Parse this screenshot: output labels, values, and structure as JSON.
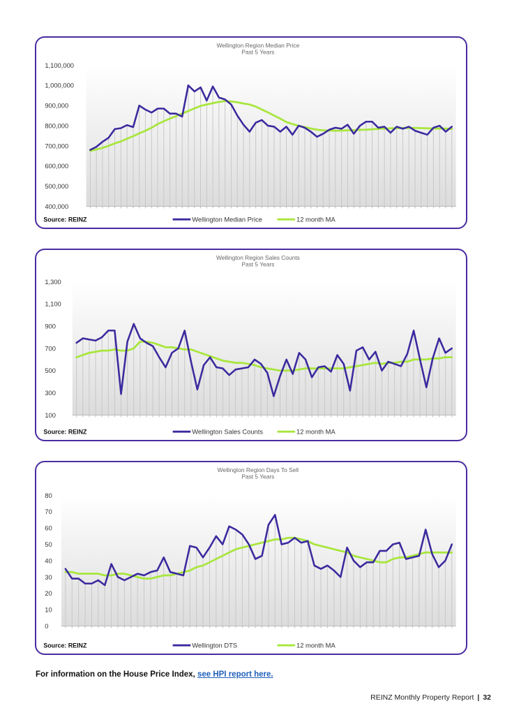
{
  "colors": {
    "series": "#3a2a9e",
    "ma": "#a8e63c",
    "border": "#4a2ca0",
    "link": "#1f5fb8"
  },
  "chart_data": [
    {
      "type": "line",
      "title": "Wellington Region  Median Price",
      "subtitle": "Past 5 Years",
      "source": "Source: REINZ",
      "ylim": [
        400000,
        1100000
      ],
      "yticks": [
        "400,000",
        "500,000",
        "600,000",
        "700,000",
        "800,000",
        "900,000",
        "1,000,000",
        "1,100,000"
      ],
      "legend_position": "bottom",
      "series": [
        {
          "name": "Wellington Median Price",
          "values": [
            680000,
            695000,
            720000,
            740000,
            783000,
            788000,
            803000,
            793000,
            900000,
            880000,
            865000,
            885000,
            885000,
            860000,
            860000,
            845000,
            1000000,
            970000,
            990000,
            925000,
            995000,
            940000,
            930000,
            905000,
            850000,
            805000,
            770000,
            815000,
            828000,
            800000,
            795000,
            770000,
            795000,
            755000,
            800000,
            790000,
            770000,
            745000,
            760000,
            780000,
            790000,
            785000,
            805000,
            760000,
            800000,
            820000,
            820000,
            790000,
            795000,
            765000,
            795000,
            785000,
            795000,
            775000,
            765000,
            755000,
            790000,
            800000,
            770000,
            795000
          ]
        },
        {
          "name": "12 month MA",
          "values": [
            675000,
            682000,
            690000,
            700000,
            712000,
            722000,
            735000,
            748000,
            762000,
            775000,
            790000,
            808000,
            822000,
            835000,
            847000,
            860000,
            873000,
            886000,
            898000,
            905000,
            912000,
            918000,
            922000,
            920000,
            916000,
            910000,
            905000,
            895000,
            880000,
            866000,
            850000,
            835000,
            818000,
            808000,
            800000,
            793000,
            786000,
            780000,
            777000,
            776000,
            775000,
            776000,
            777000,
            778000,
            779000,
            780000,
            782000,
            784000,
            786000,
            787000,
            788000,
            789000,
            789000,
            789000,
            788000,
            787000,
            786000,
            786000,
            786000,
            784000
          ]
        }
      ]
    },
    {
      "type": "line",
      "title": "Wellington Region  Sales Counts",
      "subtitle": "Past 5 Years",
      "source": "Source: REINZ",
      "ylim": [
        100,
        1300
      ],
      "yticks": [
        "100",
        "300",
        "500",
        "700",
        "900",
        "1,100",
        "1,300"
      ],
      "legend_position": "bottom",
      "series": [
        {
          "name": "Wellington Sales Counts",
          "values": [
            750,
            790,
            780,
            770,
            800,
            860,
            860,
            290,
            760,
            920,
            790,
            750,
            720,
            620,
            530,
            660,
            700,
            860,
            580,
            330,
            550,
            620,
            530,
            520,
            460,
            510,
            520,
            530,
            600,
            560,
            480,
            270,
            450,
            600,
            470,
            660,
            600,
            440,
            530,
            540,
            490,
            640,
            560,
            320,
            680,
            710,
            600,
            670,
            500,
            580,
            560,
            540,
            650,
            860,
            600,
            350,
            610,
            790,
            660,
            700
          ]
        },
        {
          "name": "12 month MA",
          "values": [
            620,
            640,
            660,
            670,
            680,
            680,
            690,
            680,
            680,
            700,
            760,
            760,
            750,
            730,
            710,
            710,
            700,
            690,
            690,
            670,
            650,
            630,
            610,
            590,
            580,
            570,
            570,
            560,
            550,
            530,
            520,
            510,
            500,
            500,
            500,
            510,
            520,
            520,
            520,
            520,
            520,
            520,
            520,
            530,
            540,
            550,
            560,
            570,
            560,
            570,
            570,
            580,
            580,
            600,
            600,
            600,
            610,
            610,
            620,
            620
          ]
        }
      ]
    },
    {
      "type": "line",
      "title": "Wellington Region  Days To Sell",
      "subtitle": "Past 5 Years",
      "source": "Source: REINZ",
      "ylim": [
        0,
        80
      ],
      "yticks": [
        "0",
        "10",
        "20",
        "30",
        "40",
        "50",
        "60",
        "70",
        "80"
      ],
      "legend_position": "bottom",
      "series": [
        {
          "name": "Wellington DTS",
          "values": [
            35,
            29,
            29,
            26,
            26,
            28,
            25,
            38,
            30,
            28,
            30,
            32,
            31,
            33,
            34,
            42,
            33,
            32,
            31,
            49,
            48,
            42,
            48,
            55,
            50,
            61,
            59,
            56,
            50,
            41,
            43,
            62,
            68,
            50,
            51,
            54,
            51,
            52,
            37,
            35,
            37,
            34,
            30,
            48,
            40,
            36,
            39,
            39,
            46,
            46,
            50,
            51,
            41,
            42,
            43,
            59,
            44,
            36,
            40,
            50
          ]
        },
        {
          "name": "12 month MA",
          "values": [
            33,
            33,
            32,
            32,
            32,
            32,
            31,
            31,
            32,
            32,
            31,
            30,
            29,
            29,
            30,
            31,
            31,
            32,
            33,
            34,
            36,
            37,
            39,
            41,
            43,
            45,
            47,
            48,
            49,
            50,
            51,
            52,
            53,
            53,
            54,
            54,
            53,
            52,
            50,
            49,
            48,
            47,
            46,
            45,
            43,
            42,
            41,
            40,
            39,
            39,
            41,
            42,
            42,
            43,
            44,
            45,
            45,
            45,
            45,
            45
          ]
        }
      ]
    }
  ],
  "footer": {
    "hpi_text": "For information on the House Price Index, ",
    "hpi_link": "see HPI report here.",
    "report_name": "REINZ Monthly Property Report",
    "separator": "|",
    "page_number": "32"
  }
}
